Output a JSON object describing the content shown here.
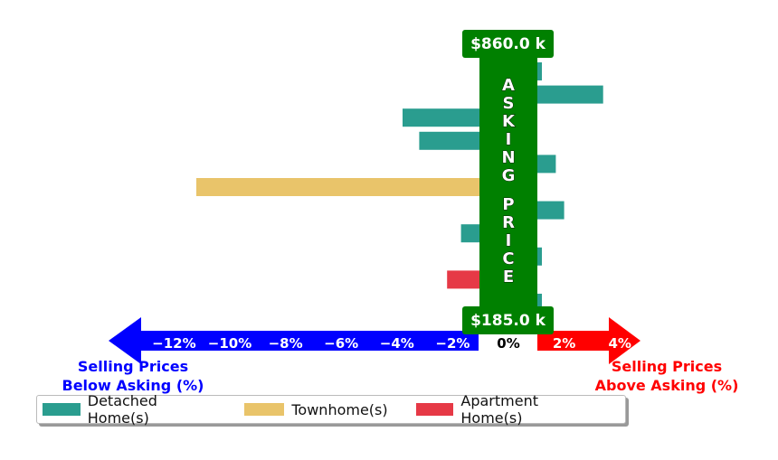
{
  "chart_data": {
    "type": "bar",
    "orientation": "horizontal",
    "xlabel_left": [
      "Selling Prices",
      "Below Asking (%)"
    ],
    "xlabel_right": [
      "Selling Prices",
      "Above Asking (%)"
    ],
    "center_label": "ASKING PRICE",
    "top_price": "$860.0 k",
    "bottom_price": "$185.0 k",
    "xlim": [
      -14,
      4.5
    ],
    "x_ticks": [
      -12,
      -10,
      -8,
      -6,
      -4,
      -2,
      0,
      2,
      4
    ],
    "x_tick_labels": [
      "−12%",
      "−10%",
      "−8%",
      "−6%",
      "−4%",
      "−2%",
      "0%",
      "2%",
      "4%"
    ],
    "legend_position": "bottom-left",
    "series": [
      {
        "name": "Detached Home(s)",
        "color": "#2a9d8f"
      },
      {
        "name": "Townhome(s)",
        "color": "#e9c46a"
      },
      {
        "name": "Apartment Home(s)",
        "color": "#e63946"
      }
    ],
    "bars": [
      {
        "series": 0,
        "value": 1.2
      },
      {
        "series": 0,
        "value": 3.4
      },
      {
        "series": 0,
        "value": -3.8
      },
      {
        "series": 0,
        "value": -3.2
      },
      {
        "series": 0,
        "value": 1.7
      },
      {
        "series": 1,
        "value": -11.2
      },
      {
        "series": 0,
        "value": 2.0
      },
      {
        "series": 0,
        "value": -1.7
      },
      {
        "series": 0,
        "value": 1.2
      },
      {
        "series": 2,
        "value": -2.2
      },
      {
        "series": 0,
        "value": 1.2
      }
    ]
  },
  "colors": {
    "asking_bar": "#008000",
    "left_arrow": "#0000ff",
    "right_arrow": "#ff0000",
    "left_label": "#0000ff",
    "right_label": "#ff0000"
  }
}
